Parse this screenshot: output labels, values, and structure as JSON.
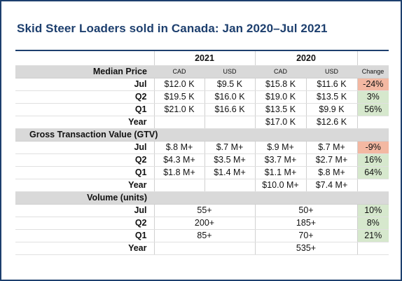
{
  "title": "Skid Steer Loaders sold in Canada: Jan 2020–Jul 2021",
  "colors": {
    "accent": "#1d3f6e",
    "negative": "#f3b8a2",
    "positive": "#d6e8cd",
    "section": "#d9d9d9"
  },
  "years": {
    "y2021": "2021",
    "y2020": "2020"
  },
  "median_price": {
    "header": "Median Price",
    "col_cad": "CAD",
    "col_usd": "USD",
    "col_change": "Change",
    "rows": [
      {
        "label": "Jul",
        "cad21": "$12.0 K",
        "usd21": "$9.5 K",
        "cad20": "$15.8 K",
        "usd20": "$11.6 K",
        "change": "-24%"
      },
      {
        "label": "Q2",
        "cad21": "$19.5 K",
        "usd21": "$16.0 K",
        "cad20": "$19.0 K",
        "usd20": "$13.5 K",
        "change": "3%"
      },
      {
        "label": "Q1",
        "cad21": "$21.0 K",
        "usd21": "$16.6 K",
        "cad20": "$13.5 K",
        "usd20": "$9.9 K",
        "change": "56%"
      },
      {
        "label": "Year",
        "cad21": "",
        "usd21": "",
        "cad20": "$17.0 K",
        "usd20": "$12.6 K",
        "change": ""
      }
    ]
  },
  "gtv": {
    "header": "Gross Transaction Value (GTV)",
    "rows": [
      {
        "label": "Jul",
        "cad21": "$.8 M+",
        "usd21": "$.7 M+",
        "cad20": "$.9 M+",
        "usd20": "$.7 M+",
        "change": "-9%"
      },
      {
        "label": "Q2",
        "cad21": "$4.3 M+",
        "usd21": "$3.5 M+",
        "cad20": "$3.7 M+",
        "usd20": "$2.7 M+",
        "change": "16%"
      },
      {
        "label": "Q1",
        "cad21": "$1.8 M+",
        "usd21": "$1.4 M+",
        "cad20": "$1.1 M+",
        "usd20": "$.8 M+",
        "change": "64%"
      },
      {
        "label": "Year",
        "cad21": "",
        "usd21": "",
        "cad20": "$10.0 M+",
        "usd20": "$7.4 M+",
        "change": ""
      }
    ]
  },
  "volume": {
    "header": "Volume (units)",
    "rows": [
      {
        "label": "Jul",
        "v21": "55+",
        "v20": "50+",
        "change": "10%"
      },
      {
        "label": "Q2",
        "v21": "200+",
        "v20": "185+",
        "change": "8%"
      },
      {
        "label": "Q1",
        "v21": "85+",
        "v20": "70+",
        "change": "21%"
      },
      {
        "label": "Year",
        "v21": "",
        "v20": "535+",
        "change": ""
      }
    ]
  }
}
